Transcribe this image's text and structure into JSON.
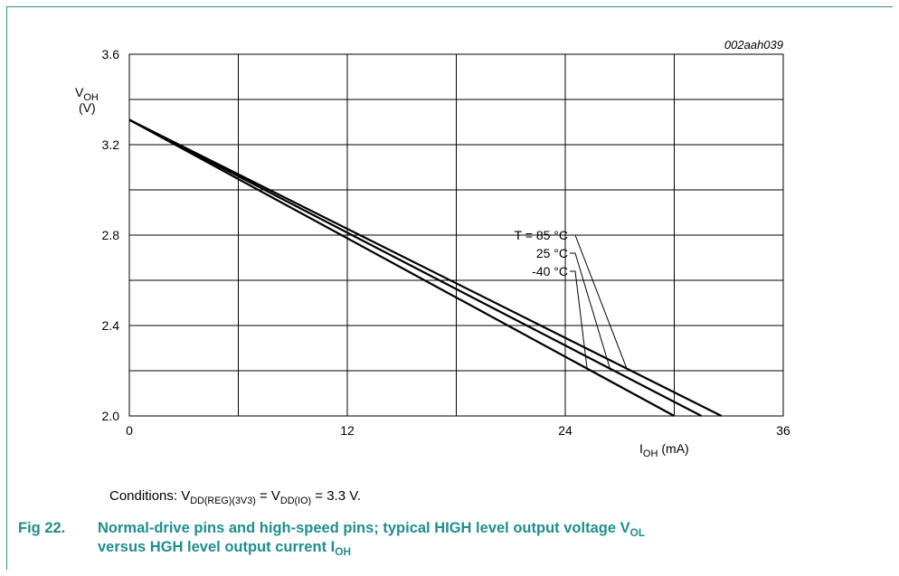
{
  "chart_data": {
    "type": "line",
    "figure_id": "002aah039",
    "y_label_main": "V",
    "y_label_sub": "OH",
    "y_label_unit": "(V)",
    "x_label_main": "I",
    "x_label_sub": "OH",
    "x_label_unit": "(mA)",
    "xlim": [
      0,
      36
    ],
    "ylim": [
      2.0,
      3.6
    ],
    "x_ticks": [
      0,
      12,
      24,
      36
    ],
    "y_ticks": [
      2.0,
      2.4,
      2.8,
      3.2,
      3.6
    ],
    "x_tick_labels": [
      "0",
      "12",
      "24",
      "36"
    ],
    "y_tick_labels": [
      "2.0",
      "2.4",
      "2.8",
      "3.2",
      "3.6"
    ],
    "grid": true,
    "series": [
      {
        "name": "T = 85 °C",
        "x": [
          0,
          32.6
        ],
        "y": [
          3.31,
          2.0
        ]
      },
      {
        "name": "25 °C",
        "x": [
          0,
          31.5
        ],
        "y": [
          3.31,
          2.0
        ]
      },
      {
        "name": "-40 °C",
        "x": [
          0,
          30.0
        ],
        "y": [
          3.31,
          2.0
        ]
      }
    ]
  },
  "conditions": {
    "prefix": "Conditions: V",
    "sub1": "DD(REG)(3V3)",
    "mid": " = V",
    "sub2": "DD(IO)",
    "suffix": " = 3.3 V."
  },
  "caption": {
    "number": "Fig 22.",
    "line1_text": "Normal-drive pins and high-speed pins; typical HIGH level output voltage V",
    "line1_sub": "OL",
    "line2_text": "versus HGH level output current I",
    "line2_sub": "OH"
  }
}
